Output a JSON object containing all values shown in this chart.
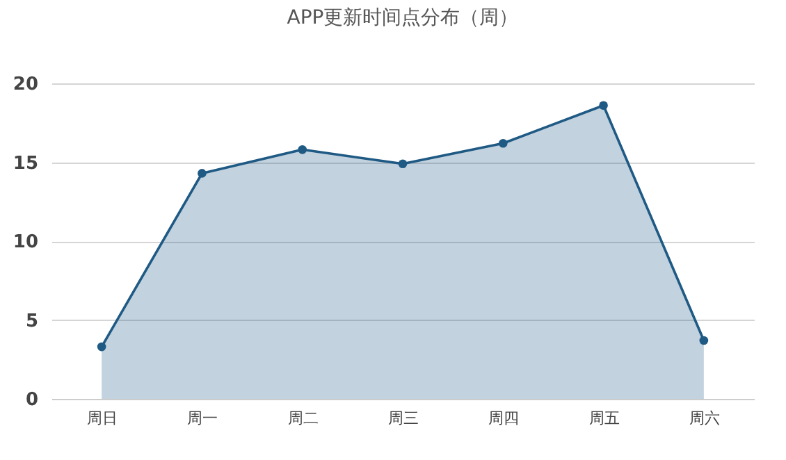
{
  "chart_data": {
    "type": "area",
    "title": "APP更新时间点分布（周）",
    "categories": [
      "周日",
      "周一",
      "周二",
      "周三",
      "周四",
      "周五",
      "周六"
    ],
    "series": [
      {
        "color": "#1f5a85",
        "values": [
          3.3,
          14.3,
          15.8,
          14.9,
          16.2,
          18.6,
          3.7
        ]
      }
    ],
    "ylim": [
      0,
      20
    ],
    "yticks": [
      0,
      5,
      10,
      15,
      20
    ],
    "grid": "y",
    "marker": "circle"
  }
}
